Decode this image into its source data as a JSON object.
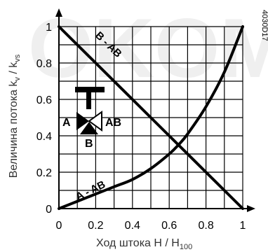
{
  "chart_data": {
    "type": "line",
    "title": "",
    "xlabel": "Ход штока H / H",
    "xlabel_sub": "100",
    "ylabel": "Величина потока k",
    "ylabel_sub1": "v",
    "ylabel_mid": " / k",
    "ylabel_sub2": "vs",
    "xlim": [
      0,
      1
    ],
    "ylim": [
      0,
      1
    ],
    "x_ticks": [
      "0",
      "0.2",
      "0.4",
      "0.6",
      "0.8",
      "1"
    ],
    "y_ticks": [
      "0",
      "0.2",
      "0.4",
      "0.6",
      "0.8",
      "1"
    ],
    "grid": true,
    "series": [
      {
        "name": "B - AB",
        "x": [
          0,
          0.2,
          0.4,
          0.6,
          0.8,
          1.0
        ],
        "y": [
          1.0,
          0.8,
          0.6,
          0.4,
          0.2,
          0.0
        ]
      },
      {
        "name": "A - AB",
        "x": [
          0,
          0.1,
          0.2,
          0.3,
          0.4,
          0.5,
          0.6,
          0.65,
          0.7,
          0.8,
          0.9,
          1.0
        ],
        "y": [
          0,
          0.04,
          0.08,
          0.12,
          0.16,
          0.22,
          0.3,
          0.35,
          0.41,
          0.56,
          0.75,
          1.0
        ]
      }
    ],
    "symbol_labels": {
      "a": "A",
      "ab": "AB",
      "b": "B"
    },
    "figure_code": "4030D17",
    "watermark": "OKOM"
  }
}
